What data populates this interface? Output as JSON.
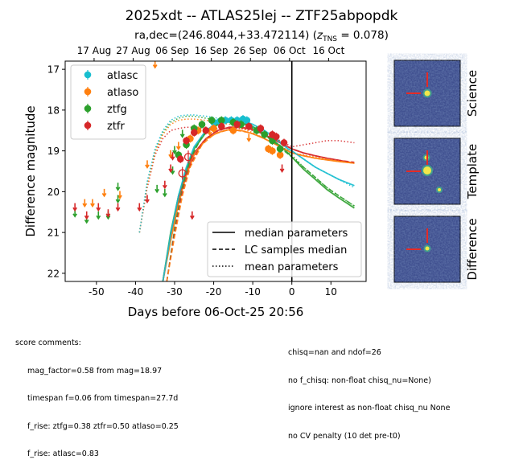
{
  "chart_data": {
    "type": "scatter",
    "title": "2025xdt -- ATLAS25lej -- ZTF25abpopdk",
    "subtitle_prefix": "ra,dec=(246.8044,+33.472114) (",
    "subtitle_z_sym": "z",
    "subtitle_z_sub": "TNS",
    "subtitle_suffix": " = 0.078)",
    "xlabel": "Days before 06-Oct-25 20:56",
    "ylabel": "Difference magnitude",
    "xlim": [
      -58,
      19
    ],
    "ylim": [
      22.2,
      16.8
    ],
    "y_inverted": true,
    "x_ticks": [
      -50,
      -40,
      -30,
      -20,
      -10,
      0,
      10
    ],
    "y_ticks": [
      17,
      18,
      19,
      20,
      21,
      22
    ],
    "top_axis_ticks": [
      {
        "x": -50.6,
        "label": "17 Aug"
      },
      {
        "x": -40.6,
        "label": "27 Aug"
      },
      {
        "x": -30.6,
        "label": "06 Sep"
      },
      {
        "x": -20.6,
        "label": "16 Sep"
      },
      {
        "x": -10.6,
        "label": "26 Sep"
      },
      {
        "x": -0.6,
        "label": "06 Oct"
      },
      {
        "x": 9.4,
        "label": "16 Oct"
      }
    ],
    "reference_line_x": 0,
    "grid": false,
    "legend_position": "top-left",
    "series": [
      {
        "name": "atlasc",
        "color": "#17becf",
        "detections": [
          [
            -20,
            18.3
          ],
          [
            -18.5,
            18.28
          ],
          [
            -17,
            18.25
          ],
          [
            -15.5,
            18.25
          ],
          [
            -14,
            18.25
          ],
          [
            -12.5,
            18.22
          ],
          [
            -11.5,
            18.25
          ]
        ],
        "upper_limits": []
      },
      {
        "name": "atlaso",
        "color": "#ff7f0e",
        "detections": [
          [
            -26,
            18.7
          ],
          [
            -24,
            18.5
          ],
          [
            -20,
            18.45
          ],
          [
            -15,
            18.5
          ],
          [
            -6,
            18.95
          ],
          [
            -5,
            19.0
          ],
          [
            -3,
            19.1
          ]
        ],
        "upper_limits": [
          [
            -53,
            20.3
          ],
          [
            -51,
            20.3
          ],
          [
            -48,
            20.05
          ],
          [
            -44,
            20.1
          ],
          [
            -37,
            19.35
          ],
          [
            -35,
            16.9
          ],
          [
            -31,
            19.1
          ],
          [
            -29,
            18.9
          ],
          [
            -21,
            18.55
          ],
          [
            -11,
            18.7
          ]
        ]
      },
      {
        "name": "ztfg",
        "color": "#2ca02c",
        "detections": [
          [
            -29,
            19.1
          ],
          [
            -27,
            18.85
          ],
          [
            -25,
            18.45
          ],
          [
            -23,
            18.35
          ],
          [
            -20.5,
            18.25
          ],
          [
            -18,
            18.25
          ],
          [
            -15,
            18.3
          ],
          [
            -13,
            18.35
          ],
          [
            -9,
            18.5
          ],
          [
            -7,
            18.6
          ],
          [
            -5,
            18.75
          ],
          [
            -3,
            18.95
          ]
        ],
        "upper_limits": [
          [
            -55.5,
            20.55
          ],
          [
            -52.5,
            20.7
          ],
          [
            -49.5,
            20.6
          ],
          [
            -47,
            20.6
          ],
          [
            -44.5,
            19.9
          ],
          [
            -44.5,
            20.2
          ],
          [
            -34.5,
            19.95
          ],
          [
            -32.5,
            20.05
          ],
          [
            -30.5,
            19.5
          ],
          [
            -30,
            19.0
          ],
          [
            -28,
            18.6
          ]
        ]
      },
      {
        "name": "ztfr",
        "color": "#d62728",
        "detections": [
          [
            -28.5,
            19.2
          ],
          [
            -27,
            18.75
          ],
          [
            -25,
            18.55
          ],
          [
            -22,
            18.5
          ],
          [
            -18,
            18.4
          ],
          [
            -14,
            18.35
          ],
          [
            -11,
            18.4
          ],
          [
            -8,
            18.45
          ],
          [
            -5,
            18.6
          ],
          [
            -4,
            18.65
          ],
          [
            -2,
            18.8
          ]
        ],
        "nondetections_open": [
          [
            -28,
            19.55
          ],
          [
            -26.5,
            19.15
          ]
        ],
        "upper_limits": [
          [
            -55.5,
            20.4
          ],
          [
            -52.5,
            20.6
          ],
          [
            -49.5,
            20.4
          ],
          [
            -47,
            20.55
          ],
          [
            -44.5,
            20.4
          ],
          [
            -39,
            20.4
          ],
          [
            -37,
            20.2
          ],
          [
            -32.5,
            19.85
          ],
          [
            -31,
            19.45
          ],
          [
            -30.5,
            19.15
          ],
          [
            -25.5,
            20.6
          ],
          [
            -2.5,
            19.45
          ]
        ]
      }
    ],
    "model_curves": [
      {
        "series": "ztfg",
        "style": "solid",
        "x": [
          -33,
          -31,
          -29,
          -27,
          -25,
          -22,
          -19,
          -16,
          -13,
          -10,
          -7,
          -4,
          -1,
          0,
          3,
          6,
          9,
          12,
          16
        ],
        "y": [
          22.2,
          21.0,
          20.1,
          19.45,
          18.95,
          18.55,
          18.35,
          18.28,
          18.3,
          18.4,
          18.6,
          18.8,
          19.05,
          19.15,
          19.45,
          19.7,
          19.95,
          20.15,
          20.4
        ]
      },
      {
        "series": "ztfr",
        "style": "solid",
        "x": [
          -33,
          -31,
          -29,
          -27,
          -25,
          -22,
          -19,
          -16,
          -13,
          -10,
          -7,
          -4,
          -1,
          0,
          3,
          6,
          9,
          12,
          16
        ],
        "y": [
          22.2,
          21.1,
          20.2,
          19.55,
          19.05,
          18.7,
          18.5,
          18.42,
          18.42,
          18.48,
          18.6,
          18.75,
          18.9,
          18.95,
          19.05,
          19.12,
          19.18,
          19.23,
          19.3
        ]
      },
      {
        "series": "atlaso",
        "style": "solid",
        "x": [
          -33,
          -31,
          -29,
          -27,
          -25,
          -22,
          -19,
          -16,
          -13,
          -10,
          -7,
          -4,
          -1,
          0,
          3,
          6,
          9,
          12,
          16
        ],
        "y": [
          22.2,
          21.2,
          20.3,
          19.6,
          19.1,
          18.72,
          18.55,
          18.48,
          18.5,
          18.58,
          18.7,
          18.85,
          19.0,
          19.05,
          19.12,
          19.18,
          19.22,
          19.26,
          19.3
        ]
      },
      {
        "series": "atlasc",
        "style": "solid",
        "x": [
          -33,
          -31,
          -29,
          -27,
          -25,
          -22,
          -19,
          -16,
          -13,
          -10,
          -7,
          -4,
          -1,
          0,
          3,
          6,
          9,
          12,
          16
        ],
        "y": [
          22.2,
          21.05,
          20.1,
          19.4,
          18.9,
          18.5,
          18.3,
          18.23,
          18.25,
          18.35,
          18.5,
          18.7,
          18.95,
          19.0,
          19.2,
          19.4,
          19.55,
          19.7,
          19.85
        ]
      },
      {
        "series": "ztfg",
        "style": "dashed",
        "x": [
          -32,
          -30,
          -28,
          -26,
          -23,
          -20,
          -17,
          -14,
          -11,
          -8,
          -5,
          -2,
          0,
          3,
          6,
          9,
          12,
          16
        ],
        "y": [
          22.2,
          20.9,
          19.9,
          19.2,
          18.65,
          18.4,
          18.3,
          18.3,
          18.38,
          18.55,
          18.75,
          19.0,
          19.15,
          19.4,
          19.65,
          19.9,
          20.1,
          20.35
        ]
      },
      {
        "series": "ztfr",
        "style": "dashed",
        "x": [
          -32,
          -30,
          -28,
          -26,
          -23,
          -20,
          -17,
          -14,
          -11,
          -8,
          -5,
          -2,
          0,
          3,
          6,
          9,
          12,
          16
        ],
        "y": [
          22.2,
          21.0,
          20.0,
          19.35,
          18.8,
          18.55,
          18.45,
          18.42,
          18.45,
          18.55,
          18.7,
          18.85,
          18.95,
          19.05,
          19.12,
          19.18,
          19.23,
          19.28
        ]
      },
      {
        "series": "atlaso",
        "style": "dashed",
        "x": [
          -32,
          -30,
          -28,
          -26,
          -23,
          -20,
          -17,
          -14,
          -11,
          -8,
          -5,
          -2,
          0,
          3,
          6,
          9,
          12,
          16
        ],
        "y": [
          22.2,
          21.1,
          20.1,
          19.4,
          18.85,
          18.6,
          18.5,
          18.5,
          18.55,
          18.65,
          18.8,
          18.95,
          19.05,
          19.12,
          19.18,
          19.22,
          19.26,
          19.3
        ]
      },
      {
        "series": "ztfg",
        "style": "dotted",
        "x": [
          -39,
          -37,
          -35,
          -33,
          -31,
          -29,
          -27,
          -25,
          -22,
          -19,
          -16,
          -13,
          -10,
          -7,
          -4,
          -1,
          0,
          3,
          6,
          9,
          12,
          16
        ],
        "y": [
          21.0,
          19.8,
          19.0,
          18.55,
          18.3,
          18.2,
          18.15,
          18.15,
          18.2,
          18.25,
          18.3,
          18.35,
          18.45,
          18.6,
          18.8,
          19.0,
          19.1,
          19.4,
          19.65,
          19.9,
          20.1,
          20.35
        ]
      },
      {
        "series": "ztfr",
        "style": "dotted",
        "x": [
          -39,
          -37,
          -35,
          -33,
          -31,
          -29,
          -27,
          -25,
          -22,
          -19,
          -16,
          -13,
          -10,
          -7,
          -4,
          -1,
          0,
          3,
          6,
          9,
          12,
          16
        ],
        "y": [
          21.0,
          19.9,
          19.1,
          18.7,
          18.5,
          18.45,
          18.42,
          18.42,
          18.45,
          18.45,
          18.45,
          18.45,
          18.5,
          18.6,
          18.7,
          18.85,
          18.9,
          18.85,
          18.8,
          18.75,
          18.75,
          18.8
        ]
      },
      {
        "series": "atlaso",
        "style": "dotted",
        "x": [
          -39,
          -37,
          -35,
          -33,
          -31,
          -29,
          -27,
          -25,
          -22,
          -19,
          -16,
          -13,
          -10,
          -7,
          -4,
          -1,
          0,
          3,
          6,
          9,
          12,
          16
        ],
        "y": [
          21.0,
          19.85,
          19.05,
          18.6,
          18.35,
          18.25,
          18.22,
          18.22,
          18.25,
          18.3,
          18.35,
          18.45,
          18.55,
          18.7,
          18.85,
          19.0,
          19.05,
          19.1,
          19.15,
          19.2,
          19.25,
          19.3
        ]
      },
      {
        "series": "atlasc",
        "style": "dotted",
        "x": [
          -39,
          -37,
          -35,
          -33,
          -31,
          -29,
          -27,
          -25,
          -22,
          -19,
          -16,
          -13,
          -10,
          -7,
          -4,
          -1,
          0,
          3,
          6,
          9,
          12,
          16
        ],
        "y": [
          21.0,
          19.75,
          18.95,
          18.5,
          18.25,
          18.15,
          18.12,
          18.12,
          18.15,
          18.2,
          18.25,
          18.3,
          18.4,
          18.55,
          18.75,
          18.95,
          19.0,
          19.2,
          19.4,
          19.55,
          19.7,
          19.9
        ]
      }
    ],
    "style_legend": [
      {
        "style": "solid",
        "label": "median parameters"
      },
      {
        "style": "dashed",
        "label": "LC samples median"
      },
      {
        "style": "dotted",
        "label": "mean parameters"
      }
    ]
  },
  "stamps": [
    {
      "label": "Science"
    },
    {
      "label": "Template"
    },
    {
      "label": "Difference"
    }
  ],
  "comments_left": {
    "heading": "score comments:",
    "lines": [
      "mag_factor=0.58 from mag=18.97",
      "timespan f=0.06 from timespan=27.7d",
      "f_rise: ztfg=0.38 ztfr=0.50 atlaso=0.25",
      "f_rise: atlasc=0.83"
    ]
  },
  "comments_right": {
    "lines": [
      "chisq=nan and ndof=26",
      "no f_chisq: non-float chisq_nu=None)",
      "ignore interest as non-float chisq_nu None",
      "no CV penalty (10 det pre-t0)"
    ]
  }
}
